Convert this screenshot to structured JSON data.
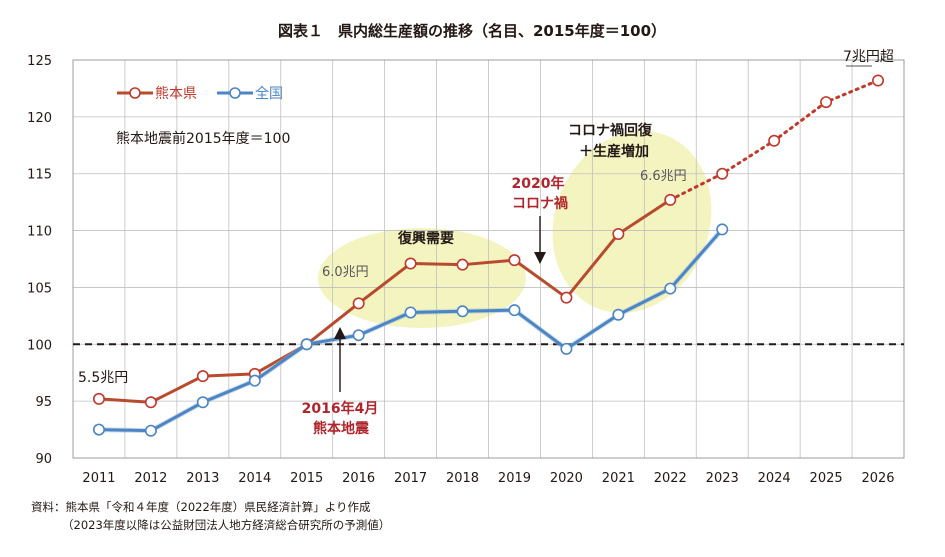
{
  "colors": {
    "kumamoto": "#b84a2e",
    "kumamoto_marker": "#c0392b",
    "national": "#4a86c6",
    "highlight": "#f2f2b6",
    "grid": "#bfbfbf",
    "baseline": "#231815",
    "event_red": "#b0252b"
  },
  "chart_data": {
    "type": "line",
    "title": "図表１　県内総生産額の推移（名目、2015年度＝100）",
    "x": [
      "2011",
      "2012",
      "2013",
      "2014",
      "2015",
      "2016",
      "2017",
      "2018",
      "2019",
      "2020",
      "2021",
      "2022",
      "2023",
      "2024",
      "2025",
      "2026"
    ],
    "ylim": [
      90,
      125
    ],
    "yticks": [
      90,
      95,
      100,
      105,
      110,
      115,
      120,
      125
    ],
    "baseline": 100,
    "grid": true,
    "legend_position": "top-left",
    "series": [
      {
        "name": "熊本県",
        "values": [
          95.2,
          94.9,
          97.2,
          97.4,
          100.0,
          103.6,
          107.1,
          107.0,
          107.4,
          104.1,
          109.7,
          112.7,
          115.0,
          117.9,
          121.3,
          123.2
        ],
        "solid_until_index": 11,
        "dotted_from_index": 11
      },
      {
        "name": "全国",
        "values": [
          92.5,
          92.4,
          94.9,
          96.8,
          100.0,
          100.8,
          102.8,
          102.9,
          103.0,
          99.6,
          102.6,
          104.9,
          110.1,
          null,
          null,
          null
        ]
      }
    ],
    "annotations": {
      "base_note": "熊本地震前2015年度＝100",
      "value_2011": "5.5兆円",
      "value_2016": "6.0兆円",
      "value_2022": "6.6兆円",
      "value_2026": "7兆円超",
      "revival_demand": "復興需要",
      "covid_recovery_line1": "コロナ禍回復",
      "covid_recovery_line2": "＋生産増加",
      "covid_line1": "2020年",
      "covid_line2": "コロナ禍",
      "quake_line1": "2016年4月",
      "quake_line2": "熊本地震"
    }
  },
  "source": {
    "line1": "資料：熊本県「令和４年度（2022年度）県民経済計算」より作成",
    "line2": "（2023年度以降は公益財団法人地方経済総合研究所の予測値）"
  }
}
